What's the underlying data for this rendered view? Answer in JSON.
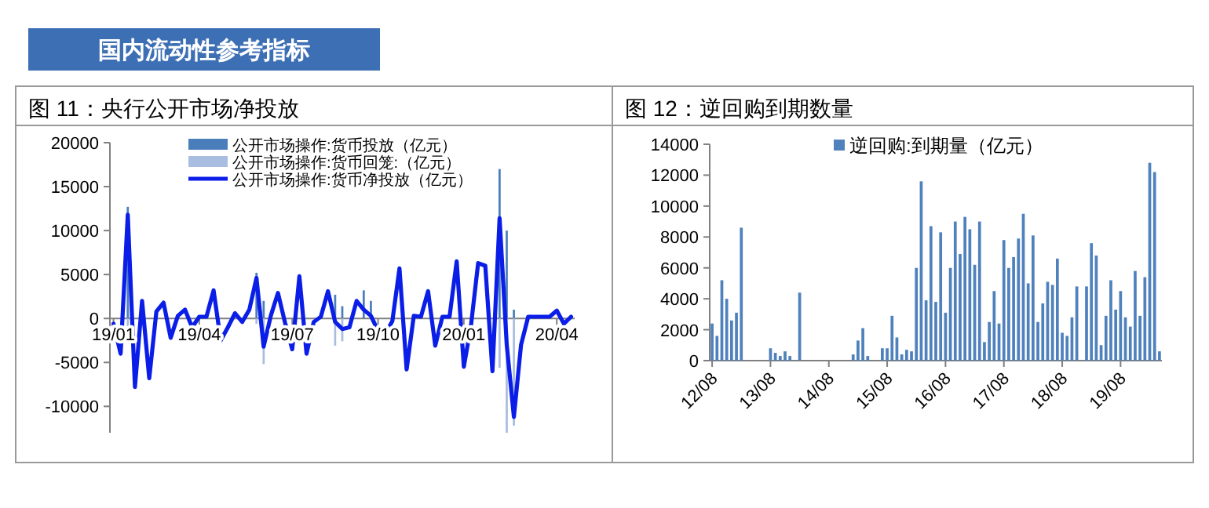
{
  "chart_data": [
    {
      "type": "bar",
      "title": "国内流动性参考指标",
      "subtitle": "图 11：央行公开市场净投放",
      "legend": "top",
      "categories": [
        "19/01",
        null,
        null,
        null,
        null,
        null,
        null,
        null,
        null,
        null,
        null,
        null,
        "19/04",
        null,
        null,
        null,
        null,
        null,
        null,
        null,
        null,
        null,
        null,
        null,
        null,
        "19/07",
        null,
        null,
        null,
        null,
        null,
        null,
        null,
        null,
        null,
        null,
        null,
        "19/10",
        null,
        null,
        null,
        null,
        null,
        null,
        null,
        null,
        null,
        null,
        null,
        "20/01",
        null,
        null,
        null,
        null,
        null,
        null,
        null,
        null,
        null,
        null,
        null,
        null,
        "20/04",
        null,
        null
      ],
      "ylim": [
        -13000,
        20000
      ],
      "yticks": [
        -10000,
        -5000,
        0,
        5000,
        10000,
        15000,
        20000
      ],
      "series": [
        {
          "name": "公开市场操作:货币投放（亿元）",
          "color": "#4a7ebb",
          "values": [
            null,
            null,
            12700,
            null,
            null,
            null,
            null,
            null,
            null,
            null,
            null,
            null,
            null,
            null,
            null,
            null,
            null,
            null,
            null,
            null,
            5200,
            2000,
            null,
            null,
            null,
            null,
            null,
            null,
            null,
            null,
            null,
            2700,
            1400,
            null,
            null,
            3200,
            2000,
            null,
            null,
            null,
            null,
            null,
            null,
            null,
            null,
            null,
            null,
            null,
            null,
            null,
            null,
            null,
            null,
            null,
            17000,
            10000,
            1000,
            null,
            null,
            null,
            null,
            null,
            null,
            null,
            null
          ]
        },
        {
          "name": "公开市场操作:货币回笼:（亿元）",
          "color": "#a9bde0",
          "values": [
            null,
            null,
            -900,
            null,
            null,
            null,
            null,
            null,
            null,
            null,
            null,
            null,
            null,
            null,
            null,
            null,
            null,
            null,
            null,
            null,
            -600,
            -5200,
            null,
            null,
            null,
            null,
            null,
            null,
            null,
            null,
            null,
            -3100,
            -2600,
            null,
            null,
            null,
            null,
            null,
            null,
            null,
            null,
            null,
            null,
            null,
            null,
            null,
            null,
            null,
            null,
            null,
            null,
            null,
            null,
            null,
            -5600,
            -13000,
            -12200,
            null,
            null,
            null,
            null,
            null,
            null,
            null,
            null
          ]
        },
        {
          "name": "公开市场操作:货币净投放（亿元）",
          "type": "line",
          "color": "#0a1ee8",
          "values": [
            -600,
            -4000,
            11800,
            -7800,
            2000,
            -6800,
            800,
            1800,
            -2200,
            300,
            1000,
            -1000,
            200,
            200,
            3200,
            -2500,
            -1000,
            600,
            -400,
            1000,
            4600,
            -3200,
            300,
            2900,
            -500,
            -3500,
            4800,
            -4000,
            -400,
            200,
            3100,
            -400,
            -1200,
            -1000,
            2000,
            1000,
            300,
            -1400,
            -1800,
            -300,
            5700,
            -5800,
            300,
            200,
            3100,
            -3100,
            200,
            200,
            6500,
            -5500,
            -800,
            6300,
            6000,
            -6000,
            11400,
            -3000,
            -11200,
            -3000,
            200,
            200,
            200,
            200,
            900,
            -600,
            200
          ]
        }
      ]
    },
    {
      "type": "bar",
      "title": "图 12：逆回购到期数量",
      "legend": "top",
      "categories": [
        "12/08",
        null,
        null,
        null,
        null,
        null,
        null,
        null,
        null,
        null,
        null,
        null,
        "13/08",
        null,
        null,
        null,
        null,
        null,
        null,
        null,
        null,
        null,
        null,
        null,
        "14/08",
        null,
        null,
        null,
        null,
        null,
        null,
        null,
        null,
        null,
        null,
        null,
        "15/08",
        null,
        null,
        null,
        null,
        null,
        null,
        null,
        null,
        null,
        null,
        null,
        "16/08",
        null,
        null,
        null,
        null,
        null,
        null,
        null,
        null,
        null,
        null,
        null,
        "17/08",
        null,
        null,
        null,
        null,
        null,
        null,
        null,
        null,
        null,
        null,
        null,
        "18/08",
        null,
        null,
        null,
        null,
        null,
        null,
        null,
        null,
        null,
        null,
        null,
        "19/08",
        null,
        null,
        null,
        null,
        null,
        null,
        null,
        null
      ],
      "ylim": [
        0,
        14000
      ],
      "yticks": [
        0,
        2000,
        4000,
        6000,
        8000,
        10000,
        12000,
        14000
      ],
      "series": [
        {
          "name": "逆回购:到期量（亿元）",
          "color": "#4f81bd",
          "values": [
            2400,
            1600,
            5200,
            4000,
            2600,
            3100,
            8600,
            0,
            0,
            0,
            0,
            0,
            800,
            500,
            300,
            600,
            300,
            0,
            4400,
            0,
            0,
            0,
            0,
            0,
            0,
            0,
            0,
            0,
            0,
            400,
            1300,
            2100,
            300,
            0,
            0,
            800,
            800,
            2900,
            1500,
            400,
            700,
            600,
            6000,
            11600,
            3900,
            8700,
            3800,
            8300,
            3100,
            6000,
            9000,
            6900,
            9300,
            8500,
            6200,
            9000,
            1200,
            2500,
            4500,
            2400,
            7800,
            6000,
            6700,
            7900,
            9500,
            5000,
            8100,
            2500,
            3700,
            5100,
            4900,
            6600,
            1800,
            1600,
            2800,
            4800,
            0,
            4800,
            7600,
            6800,
            1000,
            2900,
            5200,
            3300,
            4500,
            2800,
            2200,
            5800,
            2900,
            5400,
            12800,
            12200,
            600
          ]
        }
      ]
    }
  ]
}
